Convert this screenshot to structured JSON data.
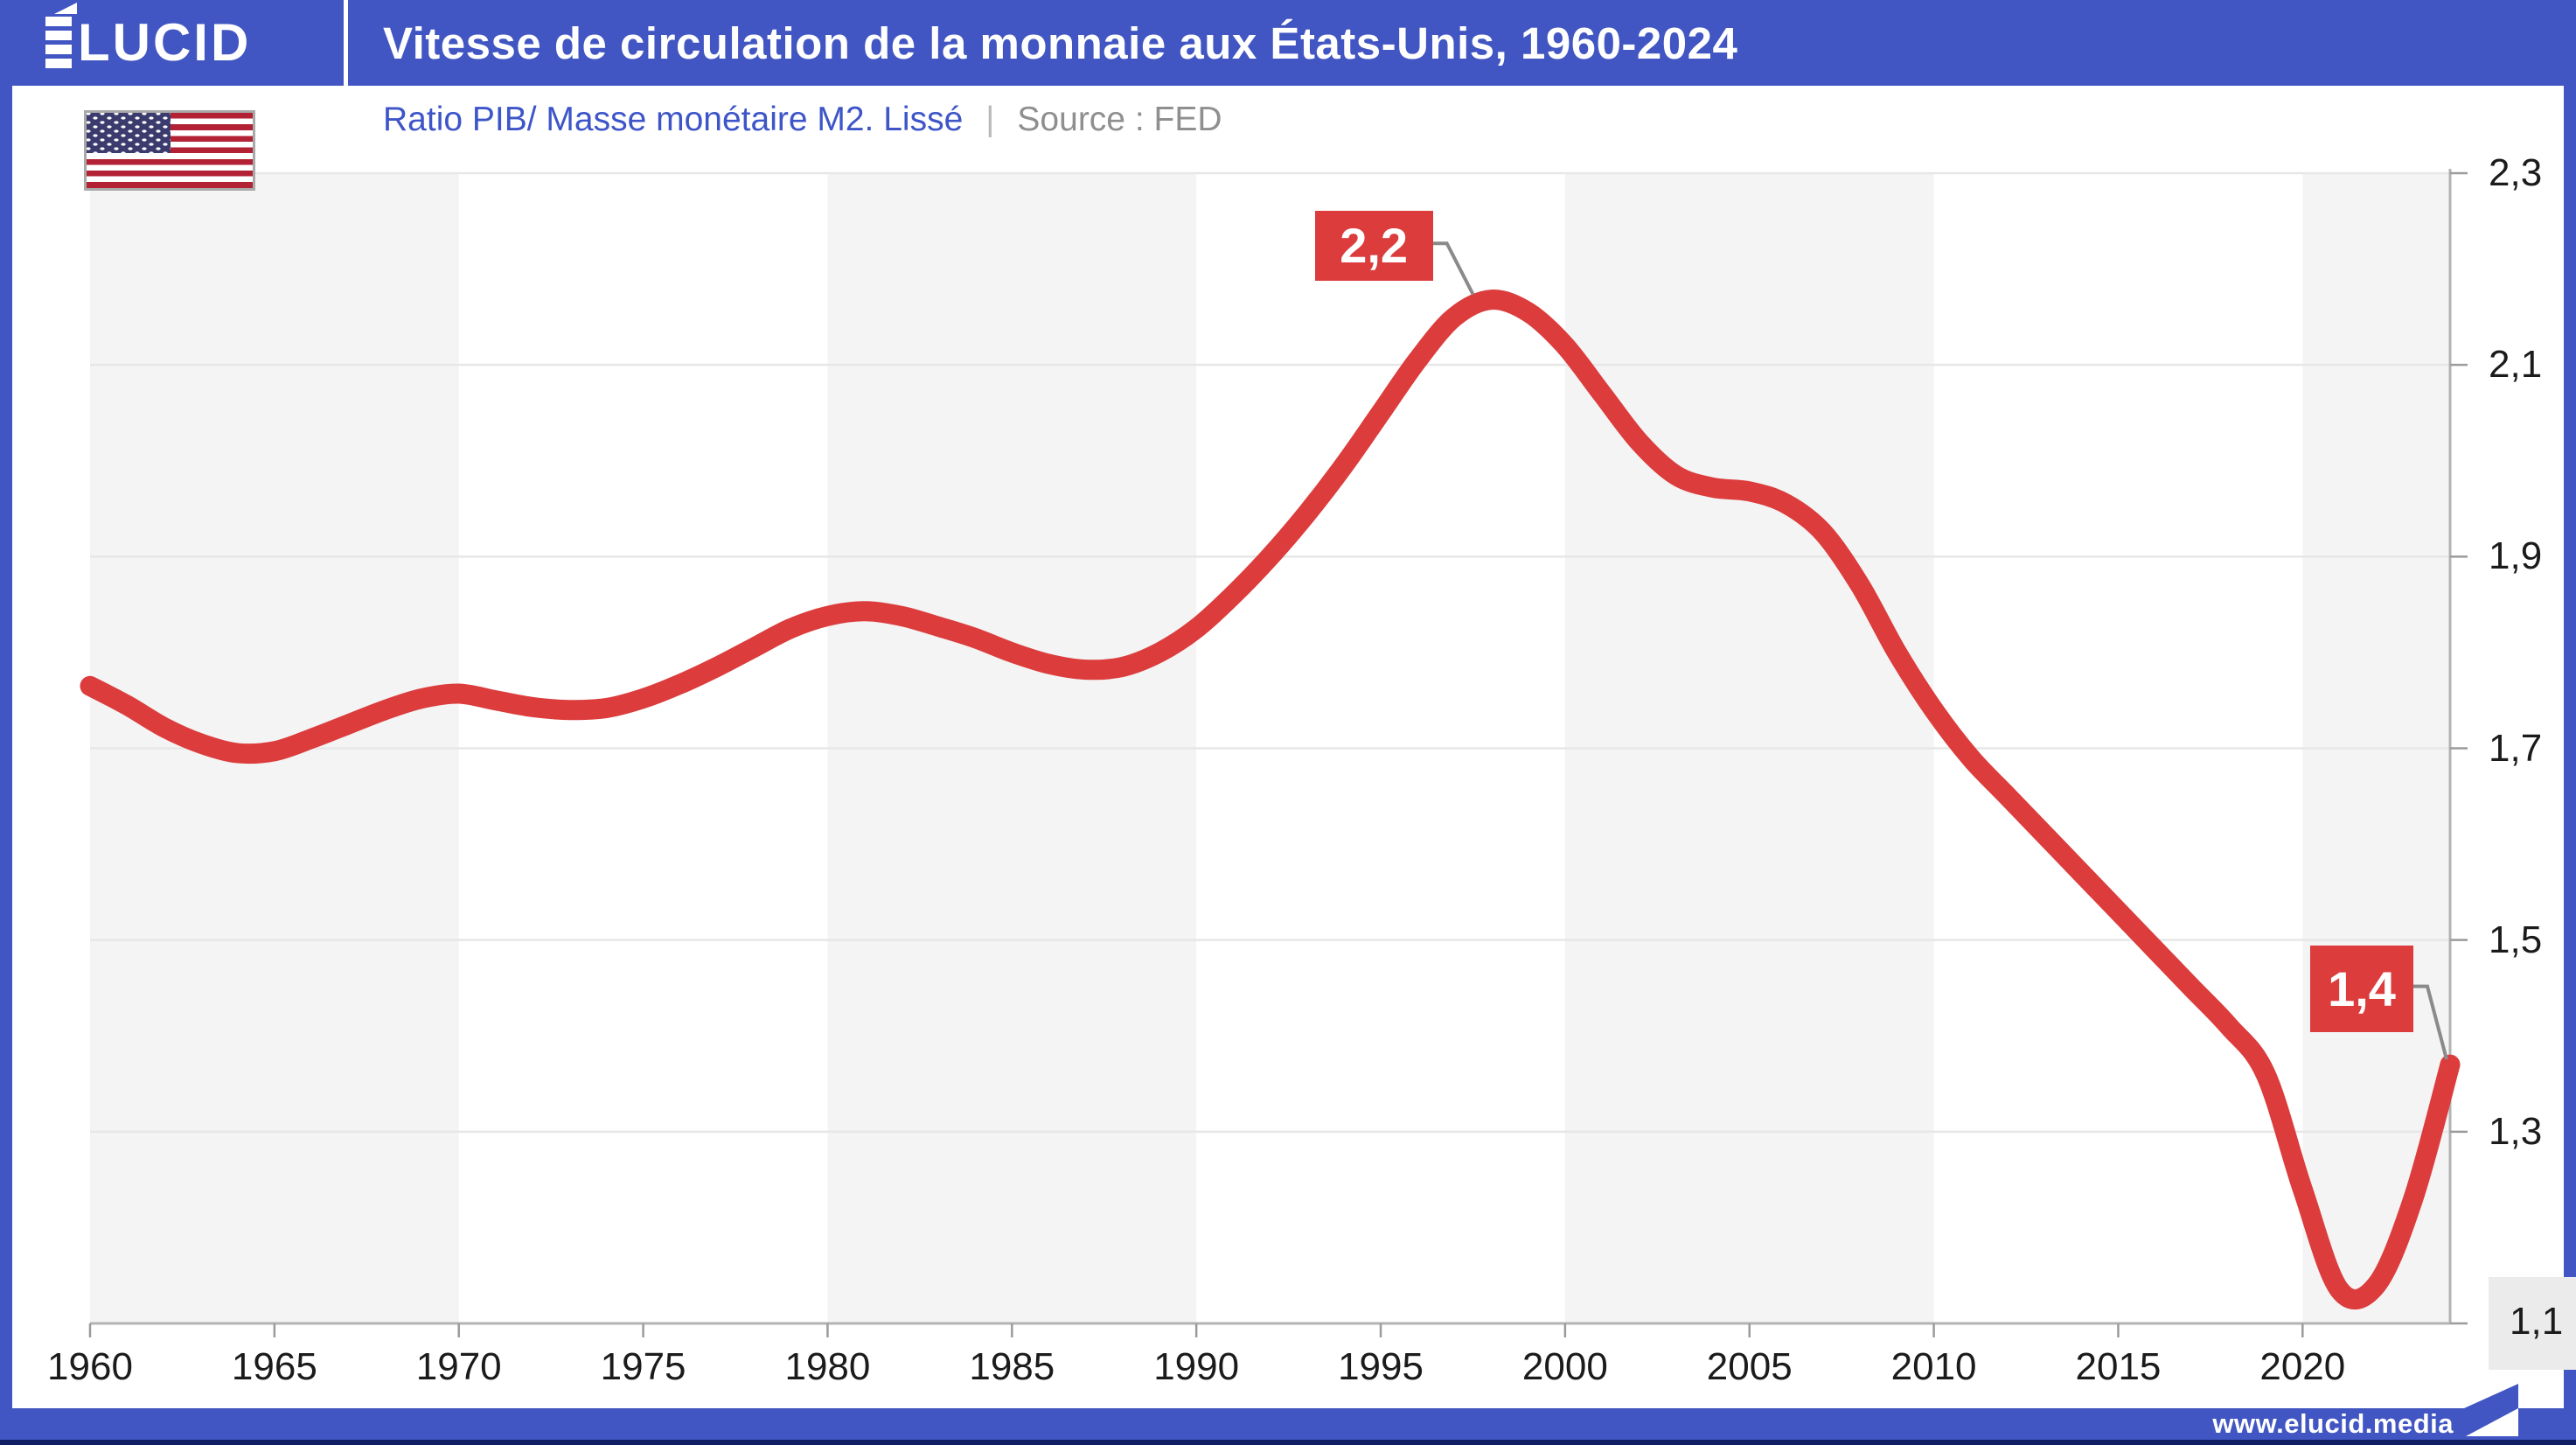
{
  "header": {
    "logo": "ÉLUCID",
    "logo_rest": "LUCID",
    "title": "Vitesse de circulation de la monnaie aux États-Unis, 1960-2024"
  },
  "subtitle": {
    "metric": "Ratio PIB/ Masse monétaire M2. Lissé",
    "separator": "|",
    "source": "Source : FED"
  },
  "flag": {
    "name": "drapeau-des-etats-unis"
  },
  "chart_data": {
    "type": "line",
    "title": "Vitesse de circulation de la monnaie aux États-Unis, 1960-2024",
    "subtitle": "Ratio PIB/ Masse monétaire M2. Lissé",
    "source": "FED",
    "xlabel": "",
    "ylabel": "",
    "xlim": [
      1960,
      2024
    ],
    "ylim": [
      1.1,
      2.3
    ],
    "grid": "horizontal",
    "x_ticks": [
      1960,
      1965,
      1970,
      1975,
      1980,
      1985,
      1990,
      1995,
      2000,
      2005,
      2010,
      2015,
      2020
    ],
    "y_ticks": [
      {
        "value": 2.3,
        "label": "2,3"
      },
      {
        "value": 2.1,
        "label": "2,1"
      },
      {
        "value": 1.9,
        "label": "1,9"
      },
      {
        "value": 1.7,
        "label": "1,7"
      },
      {
        "value": 1.5,
        "label": "1,5"
      },
      {
        "value": 1.3,
        "label": "1,3"
      },
      {
        "value": 1.1,
        "label": "1,1"
      }
    ],
    "decade_bands": [
      [
        1960,
        1970
      ],
      [
        1980,
        1990
      ],
      [
        2000,
        2010
      ],
      [
        2020,
        2024
      ]
    ],
    "x": [
      1960,
      1961,
      1962,
      1963,
      1964,
      1965,
      1966,
      1967,
      1968,
      1969,
      1970,
      1971,
      1972,
      1973,
      1974,
      1975,
      1976,
      1977,
      1978,
      1979,
      1980,
      1981,
      1982,
      1983,
      1984,
      1985,
      1986,
      1987,
      1988,
      1989,
      1990,
      1991,
      1992,
      1993,
      1994,
      1995,
      1996,
      1997,
      1998,
      1999,
      2000,
      2001,
      2002,
      2003,
      2004,
      2005,
      2006,
      2007,
      2008,
      2009,
      2010,
      2011,
      2012,
      2013,
      2014,
      2015,
      2016,
      2017,
      2018,
      2019,
      2020,
      2021,
      2022,
      2023,
      2024
    ],
    "series": [
      {
        "name": "Ratio PIB / M2 (lissé)",
        "color": "#DC3C3C",
        "values": [
          1.765,
          1.745,
          1.722,
          1.705,
          1.695,
          1.697,
          1.71,
          1.725,
          1.74,
          1.752,
          1.757,
          1.75,
          1.743,
          1.74,
          1.742,
          1.752,
          1.767,
          1.785,
          1.805,
          1.825,
          1.838,
          1.843,
          1.838,
          1.827,
          1.815,
          1.8,
          1.788,
          1.782,
          1.785,
          1.8,
          1.825,
          1.86,
          1.9,
          1.945,
          1.995,
          2.05,
          2.105,
          2.15,
          2.168,
          2.155,
          2.12,
          2.07,
          2.02,
          1.985,
          1.972,
          1.968,
          1.955,
          1.925,
          1.87,
          1.8,
          1.74,
          1.69,
          1.65,
          1.61,
          1.57,
          1.53,
          1.49,
          1.45,
          1.41,
          1.36,
          1.24,
          1.135,
          1.14,
          1.23,
          1.37
        ]
      }
    ],
    "annotations": [
      {
        "text": "2,2",
        "x": 1997.6,
        "y": 2.168
      },
      {
        "text": "1,4",
        "x": 2024,
        "y": 1.37
      }
    ]
  },
  "footer": {
    "url": "www.elucid.media"
  },
  "colors": {
    "accent_blue": "#4156C2",
    "line_red": "#DC3C3C",
    "subtitle_blue": "#3D55C8",
    "source_gray": "#8F8F8F",
    "band_gray": "#F4F4F5",
    "grid_gray": "#E7E7E7",
    "axis_gray": "#B3B3B3",
    "tick_gray": "#9B9B9B",
    "connector_gray": "#8A8A8A",
    "label_bg_gray": "#EBEBEB",
    "bottom_navy": "#101F63",
    "text_dark": "#1B1B1B"
  }
}
